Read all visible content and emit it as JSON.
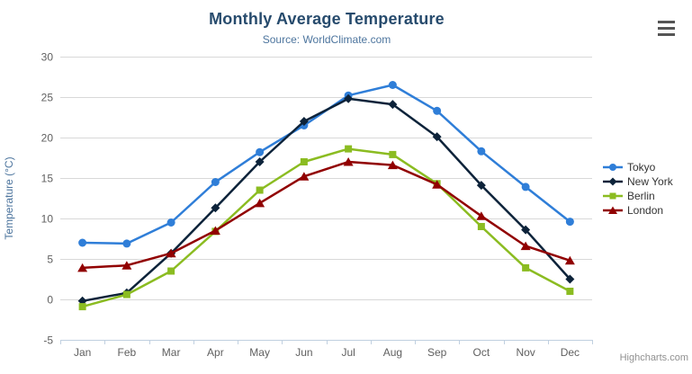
{
  "chart_data": {
    "type": "line",
    "title": "Monthly Average Temperature",
    "subtitle": "Source: WorldClimate.com",
    "xlabel": "",
    "ylabel": "Temperature (°C)",
    "categories": [
      "Jan",
      "Feb",
      "Mar",
      "Apr",
      "May",
      "Jun",
      "Jul",
      "Aug",
      "Sep",
      "Oct",
      "Nov",
      "Dec"
    ],
    "ylim": [
      -5,
      30
    ],
    "yticks": [
      -5,
      0,
      5,
      10,
      15,
      20,
      25,
      30
    ],
    "grid": true,
    "legend_position": "right",
    "series": [
      {
        "name": "Tokyo",
        "color": "#2f7ed8",
        "marker": "circle",
        "values": [
          7.0,
          6.9,
          9.5,
          14.5,
          18.2,
          21.5,
          25.2,
          26.5,
          23.3,
          18.3,
          13.9,
          9.6
        ]
      },
      {
        "name": "New York",
        "color": "#0d233a",
        "marker": "diamond",
        "values": [
          -0.2,
          0.8,
          5.7,
          11.3,
          17.0,
          22.0,
          24.8,
          24.1,
          20.1,
          14.1,
          8.6,
          2.5
        ]
      },
      {
        "name": "Berlin",
        "color": "#8bbc21",
        "marker": "square",
        "values": [
          -0.9,
          0.6,
          3.5,
          8.4,
          13.5,
          17.0,
          18.6,
          17.9,
          14.3,
          9.0,
          3.9,
          1.0
        ]
      },
      {
        "name": "London",
        "color": "#910000",
        "marker": "triangle",
        "values": [
          3.9,
          4.2,
          5.7,
          8.5,
          11.9,
          15.2,
          17.0,
          16.6,
          14.2,
          10.3,
          6.6,
          4.8
        ]
      }
    ]
  },
  "credits": {
    "label": "Highcharts.com"
  },
  "menu_icon": "hamburger-icon",
  "colors": {
    "title": "#274b6d",
    "subtitle": "#4d759e",
    "axis_title": "#4d759e",
    "tick_label": "#606060",
    "grid_line": "#d8d8d8",
    "axis_line": "#c0d0e0",
    "legend_text": "#333333",
    "credits_text": "#909090",
    "menu_icon": "#555555",
    "background": "#ffffff"
  }
}
